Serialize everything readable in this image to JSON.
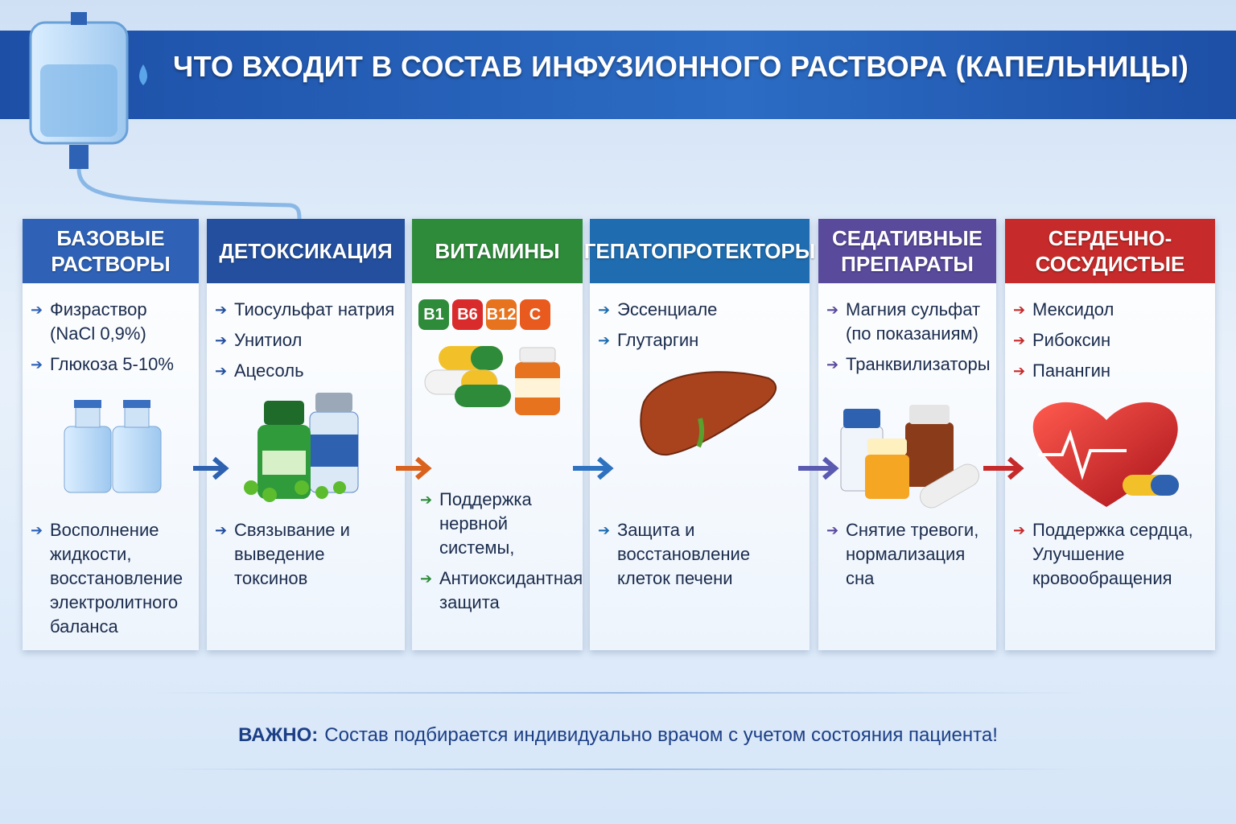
{
  "title": "ЧТО ВХОДИТ В СОСТАВ ИНФУЗИОННОГО РАСТВОРА (КАПЕЛЬНИЦЫ)",
  "columns": [
    {
      "header": "БАЗОВЫЕ РАСТВОРЫ",
      "items": [
        "Физраствор (NaCl 0,9%)",
        "Глюкоза 5-10%"
      ],
      "descriptions": [
        "Восполнение жидкости, восстановление электролитного баланса"
      ]
    },
    {
      "header": "ДЕТОКСИКАЦИЯ",
      "items": [
        "Тиосульфат натрия",
        "Унитиол",
        "Ацесоль"
      ],
      "descriptions": [
        "Связывание и выведение токсинов"
      ]
    },
    {
      "header": "ВИТАМИНЫ",
      "badges": [
        "B1",
        "B6",
        "B12",
        "C"
      ],
      "descriptions": [
        "Поддержка нервной системы,",
        "Антиоксидантная защита"
      ]
    },
    {
      "header": "ГЕПАТОПРОТЕКТОРЫ",
      "items": [
        "Эссенциале",
        "Глутаргин"
      ],
      "descriptions": [
        "Защита и восстановление клеток печени"
      ]
    },
    {
      "header": "СЕДАТИВНЫЕ ПРЕПАРАТЫ",
      "items": [
        "Магния сульфат (по показаниям)",
        "Транквилизаторы"
      ],
      "descriptions": [
        "Снятие тревоги, нормализация сна"
      ]
    },
    {
      "header": "СЕРДЕЧНО-СОСУДИСТЫЕ",
      "items": [
        "Мексидол",
        "Рибоксин",
        "Панангин"
      ],
      "descriptions": [
        "Поддержка сердца, Улучшение кровообращения"
      ]
    }
  ],
  "note": {
    "label": "ВАЖНО:",
    "text": "Состав подбирается индивидуально врачом с учетом состояния пациента!"
  }
}
